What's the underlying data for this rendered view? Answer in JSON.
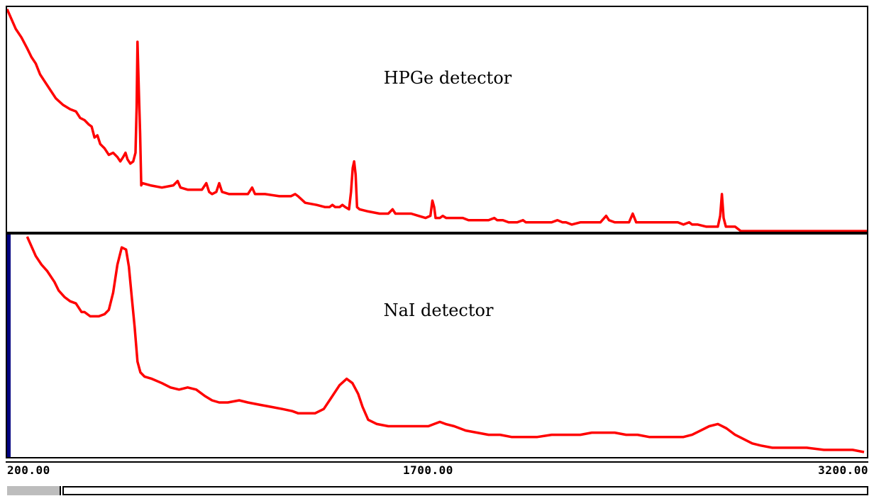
{
  "chart_data": [
    {
      "type": "line",
      "title": "HPGe detector",
      "xlim": [
        200,
        3200
      ],
      "ylim": [
        0,
        100
      ],
      "grid": false,
      "color": "#ff0000",
      "series": [
        {
          "values": [
            [
              200,
              101
            ],
            [
              230,
              92
            ],
            [
              250,
              88
            ],
            [
              270,
              83
            ],
            [
              285,
              79
            ],
            [
              300,
              76
            ],
            [
              315,
              71
            ],
            [
              330,
              68
            ],
            [
              350,
              64
            ],
            [
              370,
              60
            ],
            [
              395,
              57
            ],
            [
              420,
              55
            ],
            [
              440,
              54
            ],
            [
              455,
              51
            ],
            [
              470,
              50
            ],
            [
              485,
              48
            ],
            [
              495,
              47
            ],
            [
              505,
              42
            ],
            [
              515,
              43
            ],
            [
              525,
              39
            ],
            [
              540,
              37
            ],
            [
              555,
              34
            ],
            [
              570,
              35
            ],
            [
              585,
              33
            ],
            [
              595,
              31
            ],
            [
              605,
              33
            ],
            [
              613,
              35
            ],
            [
              620,
              32
            ],
            [
              630,
              30
            ],
            [
              640,
              31
            ],
            [
              648,
              35
            ],
            [
              652,
              56
            ],
            [
              655,
              86
            ],
            [
              658,
              72
            ],
            [
              661,
              58
            ],
            [
              664,
              44
            ],
            [
              668,
              20
            ],
            [
              672,
              21
            ],
            [
              700,
              20
            ],
            [
              740,
              19
            ],
            [
              780,
              20
            ],
            [
              795,
              22
            ],
            [
              805,
              19
            ],
            [
              830,
              18
            ],
            [
              860,
              18
            ],
            [
              880,
              18
            ],
            [
              895,
              21
            ],
            [
              905,
              17
            ],
            [
              915,
              16
            ],
            [
              930,
              17
            ],
            [
              940,
              21
            ],
            [
              950,
              17
            ],
            [
              975,
              16
            ],
            [
              1010,
              16
            ],
            [
              1040,
              16
            ],
            [
              1055,
              19
            ],
            [
              1065,
              16
            ],
            [
              1100,
              16
            ],
            [
              1150,
              15
            ],
            [
              1190,
              15
            ],
            [
              1205,
              16
            ],
            [
              1215,
              15
            ],
            [
              1240,
              12
            ],
            [
              1280,
              11
            ],
            [
              1310,
              10
            ],
            [
              1325,
              10
            ],
            [
              1335,
              11
            ],
            [
              1345,
              10
            ],
            [
              1360,
              10
            ],
            [
              1370,
              11
            ],
            [
              1380,
              10
            ],
            [
              1393,
              9
            ],
            [
              1400,
              17
            ],
            [
              1406,
              28
            ],
            [
              1411,
              31
            ],
            [
              1416,
              25
            ],
            [
              1421,
              10
            ],
            [
              1430,
              9
            ],
            [
              1460,
              8
            ],
            [
              1500,
              7
            ],
            [
              1530,
              7
            ],
            [
              1545,
              9
            ],
            [
              1555,
              7
            ],
            [
              1580,
              7
            ],
            [
              1610,
              7
            ],
            [
              1635,
              6
            ],
            [
              1660,
              5
            ],
            [
              1677,
              6
            ],
            [
              1684,
              13
            ],
            [
              1690,
              10
            ],
            [
              1695,
              5
            ],
            [
              1710,
              5
            ],
            [
              1720,
              6
            ],
            [
              1732,
              5
            ],
            [
              1760,
              5
            ],
            [
              1790,
              5
            ],
            [
              1810,
              4
            ],
            [
              1850,
              4
            ],
            [
              1880,
              4
            ],
            [
              1900,
              5
            ],
            [
              1910,
              4
            ],
            [
              1930,
              4
            ],
            [
              1950,
              3
            ],
            [
              1980,
              3
            ],
            [
              2000,
              4
            ],
            [
              2010,
              3
            ],
            [
              2030,
              3
            ],
            [
              2070,
              3
            ],
            [
              2080,
              3
            ],
            [
              2100,
              3
            ],
            [
              2120,
              4
            ],
            [
              2138,
              3
            ],
            [
              2150,
              3
            ],
            [
              2170,
              2
            ],
            [
              2200,
              3
            ],
            [
              2220,
              3
            ],
            [
              2240,
              3
            ],
            [
              2270,
              3
            ],
            [
              2290,
              6
            ],
            [
              2300,
              4
            ],
            [
              2320,
              3
            ],
            [
              2350,
              3
            ],
            [
              2370,
              3
            ],
            [
              2383,
              7
            ],
            [
              2395,
              3
            ],
            [
              2420,
              3
            ],
            [
              2460,
              3
            ],
            [
              2480,
              3
            ],
            [
              2510,
              3
            ],
            [
              2540,
              3
            ],
            [
              2560,
              2
            ],
            [
              2580,
              3
            ],
            [
              2590,
              2
            ],
            [
              2610,
              2
            ],
            [
              2640,
              1
            ],
            [
              2670,
              1
            ],
            [
              2680,
              1
            ],
            [
              2688,
              6
            ],
            [
              2694,
              16
            ],
            [
              2700,
              5
            ],
            [
              2708,
              1
            ],
            [
              2740,
              1
            ],
            [
              2760,
              -1
            ],
            [
              2800,
              -1
            ],
            [
              3000,
              -1
            ],
            [
              3200,
              -1
            ]
          ]
        }
      ]
    },
    {
      "type": "line",
      "title": "NaI detector",
      "xlim": [
        200,
        3200
      ],
      "ylim": [
        0,
        100
      ],
      "grid": false,
      "color": "#ff0000",
      "series": [
        {
          "values": [
            [
              270,
              101
            ],
            [
              300,
              92
            ],
            [
              320,
              88
            ],
            [
              340,
              85
            ],
            [
              365,
              80
            ],
            [
              380,
              76
            ],
            [
              400,
              73
            ],
            [
              420,
              71
            ],
            [
              440,
              70
            ],
            [
              460,
              66
            ],
            [
              470,
              66
            ],
            [
              490,
              64
            ],
            [
              500,
              64
            ],
            [
              520,
              64
            ],
            [
              540,
              65
            ],
            [
              555,
              67
            ],
            [
              570,
              75
            ],
            [
              585,
              88
            ],
            [
              600,
              96
            ],
            [
              615,
              95
            ],
            [
              625,
              87
            ],
            [
              635,
              73
            ],
            [
              645,
              59
            ],
            [
              655,
              43
            ],
            [
              665,
              38
            ],
            [
              680,
              36
            ],
            [
              705,
              35
            ],
            [
              740,
              33
            ],
            [
              770,
              31
            ],
            [
              800,
              30
            ],
            [
              830,
              31
            ],
            [
              860,
              30
            ],
            [
              890,
              27
            ],
            [
              915,
              25
            ],
            [
              940,
              24
            ],
            [
              970,
              24
            ],
            [
              1010,
              25
            ],
            [
              1040,
              24
            ],
            [
              1080,
              23
            ],
            [
              1120,
              22
            ],
            [
              1160,
              21
            ],
            [
              1195,
              20
            ],
            [
              1215,
              19
            ],
            [
              1245,
              19
            ],
            [
              1275,
              19
            ],
            [
              1305,
              21
            ],
            [
              1330,
              26
            ],
            [
              1360,
              32
            ],
            [
              1385,
              35
            ],
            [
              1405,
              33
            ],
            [
              1425,
              28
            ],
            [
              1440,
              22
            ],
            [
              1460,
              16
            ],
            [
              1490,
              14
            ],
            [
              1530,
              13
            ],
            [
              1570,
              13
            ],
            [
              1610,
              13
            ],
            [
              1640,
              13
            ],
            [
              1670,
              13
            ],
            [
              1690,
              14
            ],
            [
              1710,
              15
            ],
            [
              1730,
              14
            ],
            [
              1760,
              13
            ],
            [
              1800,
              11
            ],
            [
              1840,
              10
            ],
            [
              1880,
              9
            ],
            [
              1920,
              9
            ],
            [
              1960,
              8
            ],
            [
              2000,
              8
            ],
            [
              2050,
              8
            ],
            [
              2100,
              9
            ],
            [
              2150,
              9
            ],
            [
              2200,
              9
            ],
            [
              2240,
              10
            ],
            [
              2280,
              10
            ],
            [
              2320,
              10
            ],
            [
              2360,
              9
            ],
            [
              2400,
              9
            ],
            [
              2440,
              8
            ],
            [
              2480,
              8
            ],
            [
              2520,
              8
            ],
            [
              2560,
              8
            ],
            [
              2590,
              9
            ],
            [
              2620,
              11
            ],
            [
              2650,
              13
            ],
            [
              2680,
              14
            ],
            [
              2710,
              12
            ],
            [
              2740,
              9
            ],
            [
              2770,
              7
            ],
            [
              2800,
              5
            ],
            [
              2830,
              4
            ],
            [
              2870,
              3
            ],
            [
              2930,
              3
            ],
            [
              2990,
              3
            ],
            [
              3050,
              2
            ],
            [
              3110,
              2
            ],
            [
              3150,
              2
            ],
            [
              3190,
              1
            ]
          ]
        }
      ]
    }
  ],
  "xaxis": {
    "ticks": [
      "200.00",
      "1700.00",
      "3200.00"
    ]
  },
  "colors": {
    "trace": "#ff0000",
    "frame": "#000000",
    "cursor": "#000080",
    "scroll_thumb": "#bdbdbd"
  }
}
